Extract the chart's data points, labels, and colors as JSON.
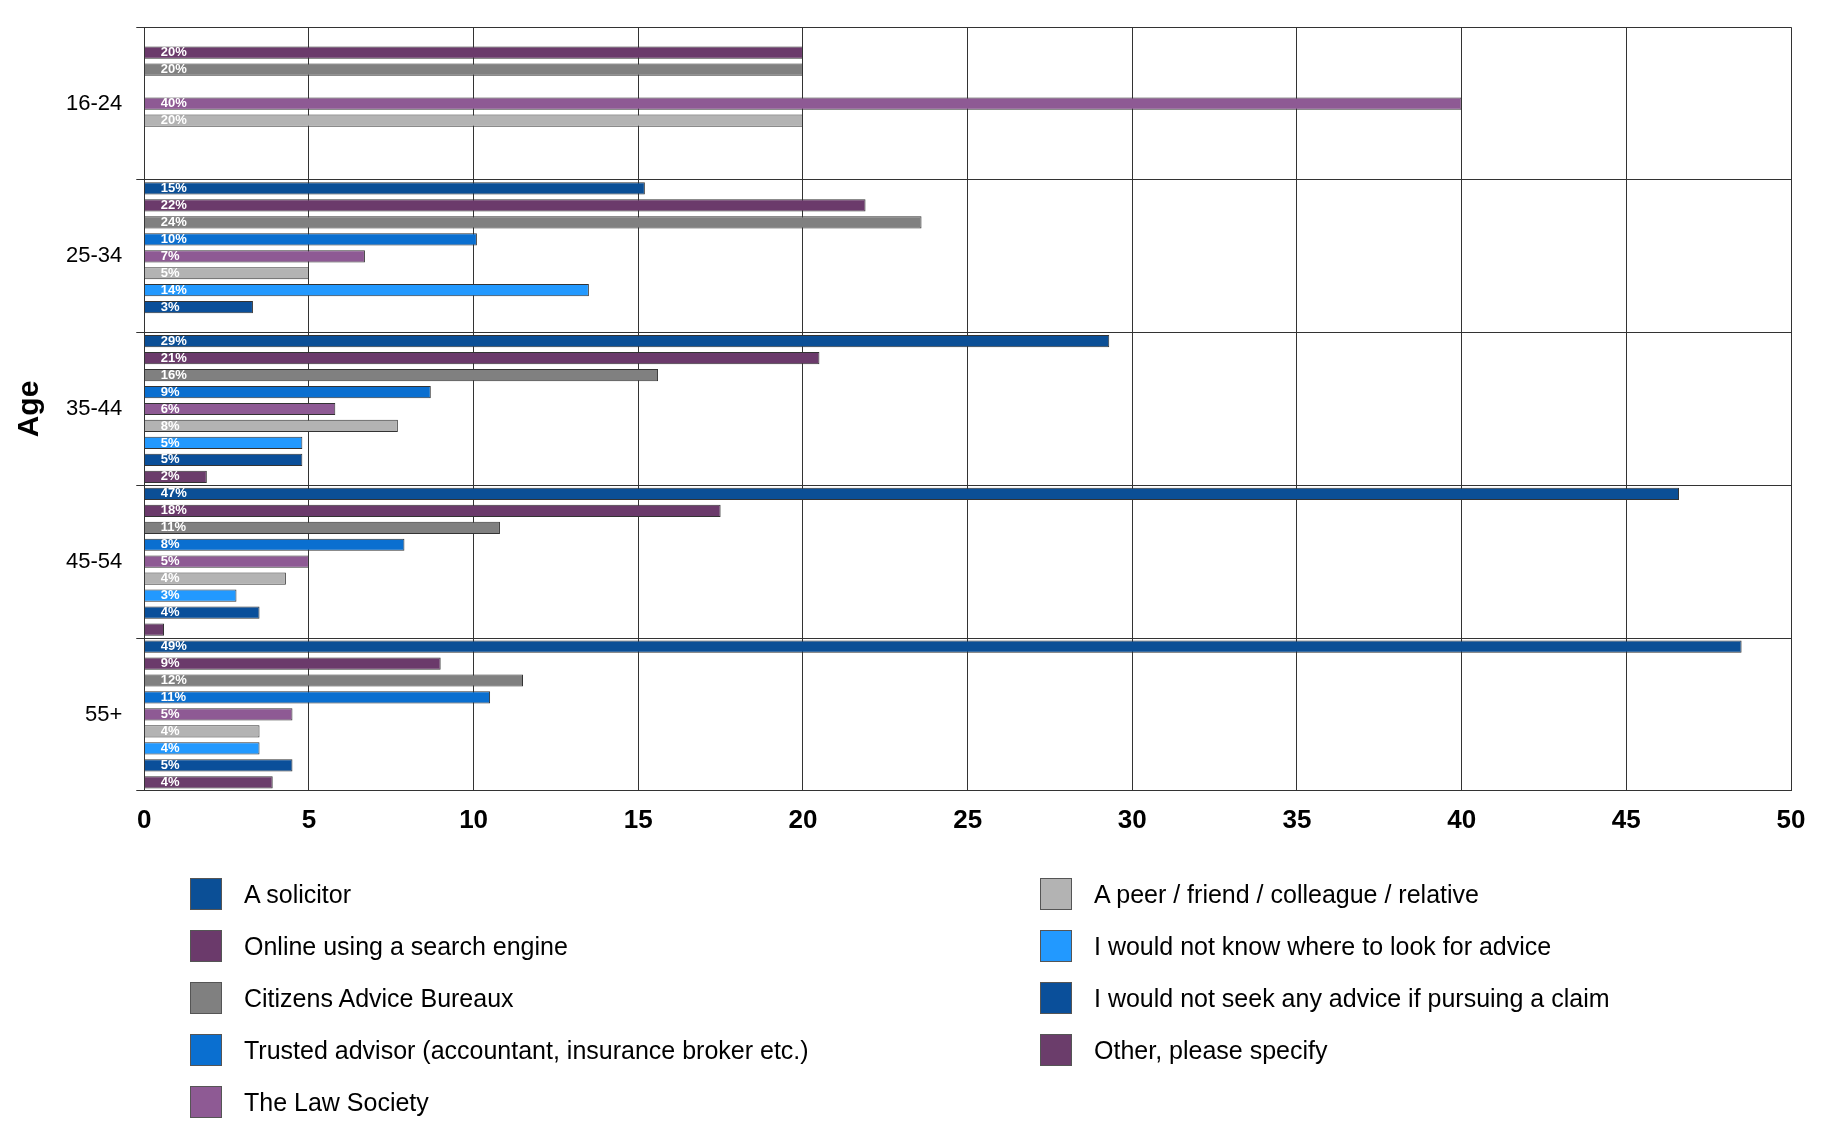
{
  "chart_data": {
    "type": "bar",
    "orientation": "horizontal",
    "ylabel": "Age",
    "categories": [
      "16-24",
      "25-34",
      "35-44",
      "45-54",
      "55+"
    ],
    "series": [
      {
        "name": "A solicitor",
        "color": "#0b4f96",
        "values": [
          null,
          15.2,
          29.3,
          46.6,
          48.5
        ],
        "value_labels": [
          null,
          "15%",
          "29%",
          "47%",
          "49%"
        ]
      },
      {
        "name": "Online using a search engine",
        "color": "#6b3a6b",
        "values": [
          20,
          21.9,
          20.5,
          17.5,
          9.0
        ],
        "value_labels": [
          "20%",
          "22%",
          "21%",
          "18%",
          "9%"
        ]
      },
      {
        "name": "Citizens Advice Bureaux",
        "color": "#808080",
        "values": [
          20,
          23.6,
          15.6,
          10.8,
          11.5
        ],
        "value_labels": [
          "20%",
          "24%",
          "16%",
          "11%",
          "12%"
        ]
      },
      {
        "name": "Trusted advisor (accountant, insurance broker etc.)",
        "color": "#0a6fd0",
        "values": [
          null,
          10.1,
          8.7,
          7.9,
          10.5
        ],
        "value_labels": [
          null,
          "10%",
          "9%",
          "8%",
          "11%"
        ]
      },
      {
        "name": "The Law Society",
        "color": "#8e5a94",
        "values": [
          40,
          6.7,
          5.8,
          5.0,
          4.5
        ],
        "value_labels": [
          "40%",
          "7%",
          "6%",
          "5%",
          "5%"
        ]
      },
      {
        "name": "A peer / friend / colleague / relative",
        "color": "#b3b3b3",
        "values": [
          20,
          5.0,
          7.7,
          4.3,
          3.5
        ],
        "value_labels": [
          "20%",
          "5%",
          "8%",
          "4%",
          "4%"
        ]
      },
      {
        "name": "I would not know where to look for advice",
        "color": "#2299ff",
        "values": [
          null,
          13.5,
          4.8,
          2.8,
          3.5
        ],
        "value_labels": [
          null,
          "14%",
          "5%",
          "3%",
          "4%"
        ]
      },
      {
        "name": "I would not seek any advice if pursuing a claim",
        "color": "#0a4f9a",
        "values": [
          null,
          3.3,
          4.8,
          3.5,
          4.5
        ],
        "value_labels": [
          null,
          "3%",
          "5%",
          "4%",
          "5%"
        ]
      },
      {
        "name": "Other, please specify",
        "color": "#6b3d6b",
        "values": [
          null,
          null,
          1.9,
          0.6,
          3.9
        ],
        "value_labels": [
          null,
          null,
          "2%",
          null,
          "4%"
        ]
      }
    ],
    "xlim": [
      0,
      50
    ],
    "xticks": [
      0,
      5,
      10,
      15,
      20,
      25,
      30,
      35,
      40,
      45,
      50
    ],
    "grid": true,
    "legend": "bottom"
  }
}
